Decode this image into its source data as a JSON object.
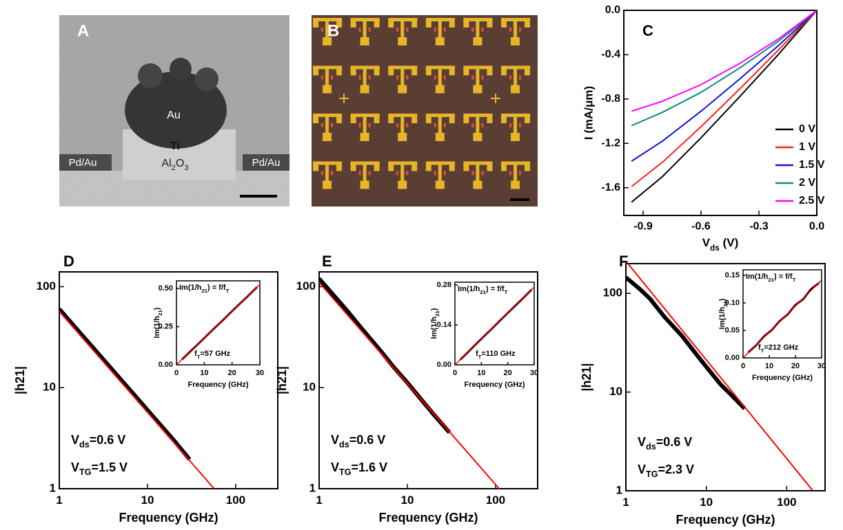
{
  "images": {
    "A": {
      "label": "A",
      "labels": [
        "Au",
        "Ti",
        "Pd/Au",
        "Pd/Au"
      ],
      "oxide": [
        {
          "text": "Al"
        },
        {
          "text": "2",
          "sub": true
        },
        {
          "text": "O"
        },
        {
          "text": "3",
          "sub": true
        }
      ]
    },
    "B": {
      "label": "B"
    }
  },
  "chart_data": [
    {
      "type": "line",
      "panel_label": "C",
      "ylabel": "I (mA/μm)",
      "xlabel": [
        {
          "text": "V"
        },
        {
          "text": "ds",
          "sub": true
        },
        {
          "text": " (V)"
        }
      ],
      "x": [
        -0.96,
        -0.8,
        -0.6,
        -0.4,
        -0.2,
        0
      ],
      "series": [
        {
          "name": "0 V",
          "color": "#000000",
          "values": [
            -1.73,
            -1.5,
            -1.15,
            -0.78,
            -0.4,
            0
          ]
        },
        {
          "name": "1 V",
          "color": "#ff2020",
          "values": [
            -1.59,
            -1.37,
            -1.05,
            -0.71,
            -0.36,
            0
          ]
        },
        {
          "name": "1.5 V",
          "color": "#1010e0",
          "values": [
            -1.36,
            -1.18,
            -0.91,
            -0.62,
            -0.32,
            0
          ]
        },
        {
          "name": "2 V",
          "color": "#0a8a80",
          "values": [
            -1.04,
            -0.92,
            -0.74,
            -0.52,
            -0.28,
            0
          ]
        },
        {
          "name": "2.5 V",
          "color": "#ff00ff",
          "values": [
            -0.91,
            -0.82,
            -0.67,
            -0.48,
            -0.26,
            0
          ]
        }
      ],
      "xlim": [
        -1.0,
        0.0
      ],
      "xticks": [
        -0.9,
        -0.6,
        -0.3,
        {
          "value": 0,
          "label": "0.0"
        }
      ],
      "ylim": [
        -1.85,
        0.0
      ],
      "yticks": [
        {
          "value": 0,
          "label": "0.0"
        },
        -0.4,
        -0.8,
        -1.2,
        -1.6
      ],
      "legend": "lower right"
    },
    {
      "type": "line",
      "panel_label": "D",
      "ylabel": "|h21|",
      "xlabel": "Frequency (GHz)",
      "log_x": true,
      "log_y": true,
      "xlim": [
        1,
        300
      ],
      "xticks": [
        1,
        10,
        100
      ],
      "ylim": [
        1,
        140
      ],
      "yticks": [
        1,
        10,
        100
      ],
      "series": [
        {
          "color": "#000000",
          "linewidth": 6,
          "x": [
            1,
            1.5,
            2,
            3,
            5,
            7,
            10,
            15,
            20,
            30
          ],
          "values": [
            60,
            40,
            30,
            20,
            12,
            8.6,
            6,
            4,
            3,
            1.95
          ]
        },
        {
          "color": "#ff0000",
          "linewidth": 2,
          "x": [
            1,
            57
          ],
          "values": [
            57,
            1
          ]
        }
      ],
      "annotations": [
        [
          {
            "text": "V"
          },
          {
            "text": "ds",
            "sub": true
          },
          {
            "text": "=0.6 V"
          }
        ],
        [
          {
            "text": "V"
          },
          {
            "text": "TG",
            "sub": true
          },
          {
            "text": "=1.5 V"
          }
        ]
      ]
    },
    {
      "type": "line",
      "title": [
        {
          "text": "Im(1/h"
        },
        {
          "text": "21",
          "sub": true
        },
        {
          "text": ") = f/f"
        },
        {
          "text": "T",
          "sub": true
        }
      ],
      "ylabel": [
        {
          "text": "Im(1/h"
        },
        {
          "text": "21",
          "sub": true
        },
        {
          "text": ")"
        }
      ],
      "xlabel": "Frequency (GHz)",
      "xlim": [
        0,
        30
      ],
      "xticks": [
        0,
        10,
        20,
        30
      ],
      "ylim": [
        0,
        0.55
      ],
      "yticks": [
        {
          "value": 0,
          "label": "0.00"
        },
        0.25,
        {
          "value": 0.5,
          "label": "0.50"
        }
      ],
      "series": [
        {
          "color": "#000000",
          "linewidth": 3,
          "x": [
            2,
            5,
            8,
            11,
            14,
            17,
            20,
            23,
            26,
            29
          ],
          "values": [
            0.035,
            0.088,
            0.14,
            0.193,
            0.246,
            0.298,
            0.351,
            0.404,
            0.456,
            0.509
          ]
        },
        {
          "color": "#ff0000",
          "linewidth": 1.5,
          "x": [
            0,
            30
          ],
          "values": [
            0,
            0.526
          ]
        }
      ],
      "annotations": [
        [
          {
            "text": "f"
          },
          {
            "text": "T",
            "sub": true
          },
          {
            "text": "=57 GHz"
          }
        ]
      ]
    },
    {
      "type": "line",
      "panel_label": "E",
      "ylabel": "|h21|",
      "xlabel": "Frequency (GHz)",
      "log_x": true,
      "log_y": true,
      "xlim": [
        1,
        300
      ],
      "xticks": [
        1,
        10,
        100
      ],
      "ylim": [
        1,
        140
      ],
      "yticks": [
        1,
        10,
        100
      ],
      "series": [
        {
          "color": "#000000",
          "linewidth": 6,
          "x": [
            1,
            1.5,
            2,
            3,
            5,
            7,
            10,
            15,
            20,
            30
          ],
          "values": [
            120,
            80,
            60,
            39,
            23,
            16,
            11.2,
            7.3,
            5.4,
            3.6
          ]
        },
        {
          "color": "#ff0000",
          "linewidth": 2,
          "x": [
            1,
            110
          ],
          "values": [
            110,
            1
          ]
        }
      ],
      "annotations": [
        [
          {
            "text": "V"
          },
          {
            "text": "ds",
            "sub": true
          },
          {
            "text": "=0.6 V"
          }
        ],
        [
          {
            "text": "V"
          },
          {
            "text": "TG",
            "sub": true
          },
          {
            "text": "=1.6 V"
          }
        ]
      ]
    },
    {
      "type": "line",
      "title": [
        {
          "text": "Im(1/h"
        },
        {
          "text": "21",
          "sub": true
        },
        {
          "text": ") = f/f"
        },
        {
          "text": "T",
          "sub": true
        }
      ],
      "ylabel": [
        {
          "text": "Im(1/h"
        },
        {
          "text": "21",
          "sub": true
        },
        {
          "text": ")"
        }
      ],
      "xlabel": "Frequency (GHz)",
      "xlim": [
        0,
        30
      ],
      "xticks": [
        0,
        10,
        20,
        30
      ],
      "ylim": [
        0,
        0.29
      ],
      "yticks": [
        {
          "value": 0,
          "label": "0.00"
        },
        0.14,
        0.28
      ],
      "series": [
        {
          "color": "#000000",
          "linewidth": 3,
          "x": [
            2,
            5,
            8,
            11,
            14,
            17,
            20,
            23,
            26,
            29
          ],
          "values": [
            0.018,
            0.045,
            0.073,
            0.1,
            0.127,
            0.155,
            0.182,
            0.209,
            0.236,
            0.264
          ]
        },
        {
          "color": "#ff0000",
          "linewidth": 1.5,
          "x": [
            0,
            30
          ],
          "values": [
            0,
            0.273
          ]
        }
      ],
      "annotations": [
        [
          {
            "text": "f"
          },
          {
            "text": "T",
            "sub": true
          },
          {
            "text": "=110 GHz"
          }
        ]
      ]
    },
    {
      "type": "line",
      "panel_label": "F",
      "ylabel": "|h21|",
      "xlabel": "Frequency (GHz)",
      "log_x": true,
      "log_y": true,
      "xlim": [
        1,
        300
      ],
      "xticks": [
        1,
        10,
        100
      ],
      "ylim": [
        1,
        200
      ],
      "yticks": [
        1,
        10,
        100
      ],
      "series": [
        {
          "color": "#000000",
          "linewidth": 6,
          "x": [
            1,
            1.5,
            2,
            3,
            5,
            7,
            10,
            15,
            20,
            30
          ],
          "values": [
            145,
            110,
            88,
            58,
            37,
            26,
            18,
            12,
            9.5,
            6.8
          ]
        },
        {
          "color": "#ff0000",
          "linewidth": 2,
          "x": [
            1,
            212
          ],
          "values": [
            212,
            1
          ]
        }
      ],
      "annotations": [
        [
          {
            "text": "V"
          },
          {
            "text": "ds",
            "sub": true
          },
          {
            "text": "=0.6 V"
          }
        ],
        [
          {
            "text": "V"
          },
          {
            "text": "TG",
            "sub": true
          },
          {
            "text": "=2.3 V"
          }
        ]
      ]
    },
    {
      "type": "line",
      "title": [
        {
          "text": "Im(1/h"
        },
        {
          "text": "21",
          "sub": true
        },
        {
          "text": ") = f/f"
        },
        {
          "text": "T",
          "sub": true
        }
      ],
      "ylabel": [
        {
          "text": "Im(1/h"
        },
        {
          "text": "21",
          "sub": true
        },
        {
          "text": ")"
        }
      ],
      "xlabel": "Frequency (GHz)",
      "xlim": [
        0,
        30
      ],
      "xticks": [
        0,
        10,
        20,
        30
      ],
      "ylim": [
        0,
        0.16
      ],
      "yticks": [
        {
          "value": 0,
          "label": "0.00"
        },
        0.05,
        {
          "value": 0.1,
          "label": "0.10"
        },
        0.15
      ],
      "series": [
        {
          "color": "#000000",
          "linewidth": 3,
          "x": [
            2,
            5,
            8,
            11,
            14,
            17,
            20,
            23,
            26,
            29
          ],
          "values": [
            0.01,
            0.023,
            0.039,
            0.051,
            0.067,
            0.079,
            0.096,
            0.107,
            0.125,
            0.136
          ]
        },
        {
          "color": "#ff0000",
          "linewidth": 1.5,
          "x": [
            0,
            30
          ],
          "values": [
            0,
            0.1415
          ]
        }
      ],
      "annotations": [
        [
          {
            "text": "f"
          },
          {
            "text": "T",
            "sub": true
          },
          {
            "text": "=212 GHz"
          }
        ]
      ]
    }
  ]
}
